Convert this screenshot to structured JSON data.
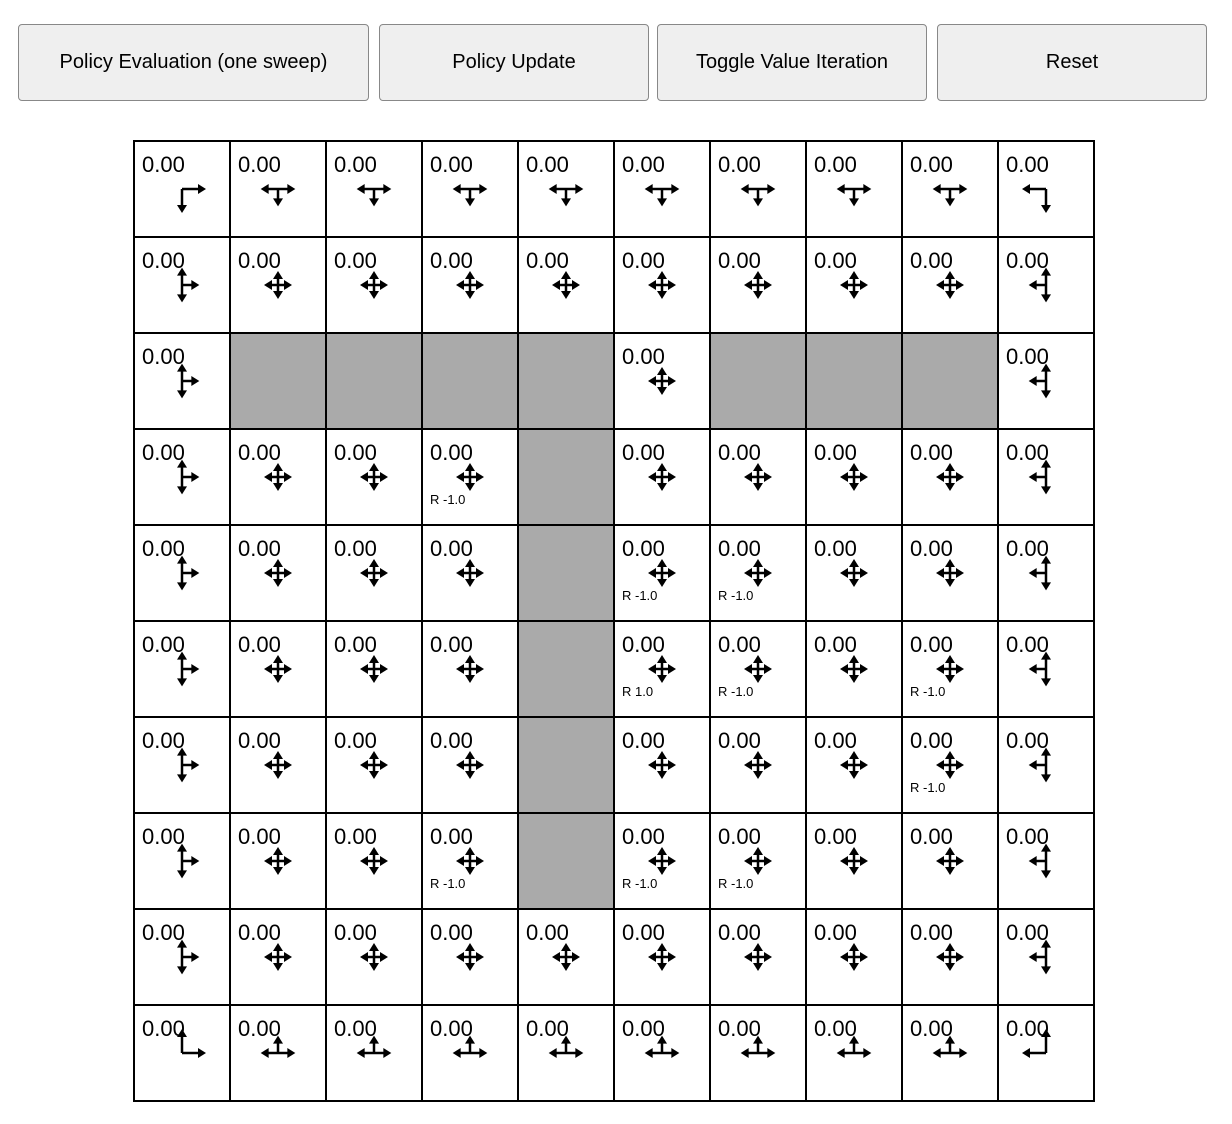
{
  "toolbar": {
    "policy_evaluation_label": "Policy Evaluation (one sweep)",
    "policy_update_label": "Policy Update",
    "toggle_value_iteration_label": "Toggle Value Iteration",
    "reset_label": "Reset"
  },
  "grid": {
    "rows": 10,
    "cols": 10,
    "wall_color": "#aaaaaa",
    "walls": [
      [
        2,
        1
      ],
      [
        2,
        2
      ],
      [
        2,
        3
      ],
      [
        2,
        4
      ],
      [
        2,
        6
      ],
      [
        2,
        7
      ],
      [
        2,
        8
      ],
      [
        3,
        4
      ],
      [
        4,
        4
      ],
      [
        5,
        4
      ],
      [
        6,
        4
      ],
      [
        7,
        4
      ]
    ],
    "default_value": "0.00",
    "rewards": [
      {
        "row": 3,
        "col": 3,
        "label": "R -1.0"
      },
      {
        "row": 4,
        "col": 5,
        "label": "R -1.0"
      },
      {
        "row": 4,
        "col": 6,
        "label": "R -1.0"
      },
      {
        "row": 5,
        "col": 5,
        "label": "R 1.0"
      },
      {
        "row": 5,
        "col": 6,
        "label": "R -1.0"
      },
      {
        "row": 5,
        "col": 8,
        "label": "R -1.0"
      },
      {
        "row": 6,
        "col": 8,
        "label": "R -1.0"
      },
      {
        "row": 7,
        "col": 3,
        "label": "R -1.0"
      },
      {
        "row": 7,
        "col": 5,
        "label": "R -1.0"
      },
      {
        "row": 7,
        "col": 6,
        "label": "R -1.0"
      }
    ],
    "policy": "uniform over allowed actions"
  }
}
